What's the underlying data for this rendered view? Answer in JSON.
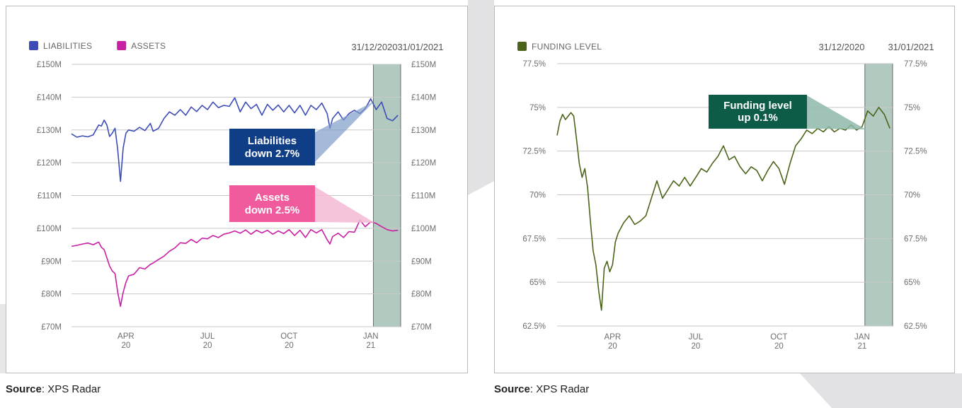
{
  "colors": {
    "liabilities": "#3d4db7",
    "assets": "#c81fa4",
    "funding": "#4b6419",
    "shade": "#a9c4b8",
    "liab_box": "#0f3d86",
    "assets_box": "#ef5b9c",
    "funding_box": "#0d5c48",
    "grid": "#c8c8c8",
    "axis_text": "#6e6e6e"
  },
  "left_panel": {
    "source_label": "Source",
    "source_text": ": XPS Radar",
    "dates": [
      "31/12/2020",
      "31/01/2021"
    ],
    "callouts": [
      {
        "line1": "Liabilities",
        "line2": "down 2.7%"
      },
      {
        "line1": "Assets",
        "line2": "down 2.5%"
      }
    ]
  },
  "right_panel": {
    "source_label": "Source",
    "source_text": ": XPS Radar",
    "dates": [
      "31/12/2020",
      "31/01/2021"
    ],
    "callouts": [
      {
        "line1": "Funding level",
        "line2": "up 0.1%"
      }
    ]
  },
  "chart_data": [
    {
      "type": "line",
      "legend": [
        "LIABILITIES",
        "ASSETS"
      ],
      "legend_position": "top-left",
      "grid": true,
      "ylim": [
        70,
        150
      ],
      "y_ticks": [
        "£150M",
        "£140M",
        "£130M",
        "£120M",
        "£110M",
        "£100M",
        "£90M",
        "£80M",
        "£70M"
      ],
      "y_tick_values": [
        150,
        140,
        130,
        120,
        110,
        100,
        90,
        80,
        70
      ],
      "xlim": [
        0,
        12.1
      ],
      "x_ticks": [
        {
          "x": 2,
          "label": [
            "APR",
            "20"
          ]
        },
        {
          "x": 5,
          "label": [
            "JUL",
            "20"
          ]
        },
        {
          "x": 8,
          "label": [
            "OCT",
            "20"
          ]
        },
        {
          "x": 11,
          "label": [
            "JAN",
            "21"
          ]
        }
      ],
      "shaded_region": [
        11.1,
        12.1
      ],
      "series": [
        {
          "name": "LIABILITIES",
          "x": [
            0,
            0.2,
            0.4,
            0.6,
            0.8,
            1.0,
            1.1,
            1.2,
            1.3,
            1.4,
            1.5,
            1.6,
            1.7,
            1.8,
            1.9,
            2.0,
            2.1,
            2.3,
            2.5,
            2.7,
            2.9,
            3.0,
            3.2,
            3.4,
            3.6,
            3.8,
            4.0,
            4.2,
            4.4,
            4.6,
            4.8,
            5.0,
            5.2,
            5.4,
            5.6,
            5.8,
            6.0,
            6.2,
            6.4,
            6.6,
            6.8,
            7.0,
            7.2,
            7.4,
            7.6,
            7.8,
            8.0,
            8.2,
            8.4,
            8.6,
            8.8,
            9.0,
            9.2,
            9.4,
            9.5,
            9.6,
            9.8,
            10.0,
            10.2,
            10.4,
            10.6,
            10.8,
            11.0,
            11.2,
            11.4,
            11.6,
            11.8,
            12.0
          ],
          "values": [
            128.8,
            127.8,
            128.2,
            127.9,
            128.5,
            131.5,
            131.2,
            133,
            131.5,
            128,
            129,
            130.5,
            124,
            114.3,
            124.5,
            129,
            130,
            129.6,
            130.8,
            129.8,
            132,
            129.6,
            130.5,
            133.5,
            135.5,
            134.5,
            136.2,
            134.5,
            137,
            135.6,
            137.5,
            136.2,
            138.5,
            136.8,
            137.5,
            137.2,
            139.8,
            135.5,
            138.5,
            136.5,
            137.8,
            134.5,
            137.8,
            136,
            137.6,
            135.5,
            137.5,
            135.2,
            137.5,
            134.5,
            137.5,
            136.2,
            138.2,
            135,
            130.5,
            133.5,
            135.5,
            133,
            135,
            136,
            135,
            136.5,
            139.5,
            136.2,
            138.5,
            133.5,
            132.8,
            134.5
          ]
        },
        {
          "name": "ASSETS",
          "x": [
            0,
            0.2,
            0.4,
            0.6,
            0.8,
            1.0,
            1.1,
            1.2,
            1.3,
            1.4,
            1.5,
            1.6,
            1.7,
            1.8,
            1.9,
            2.0,
            2.1,
            2.3,
            2.5,
            2.7,
            2.9,
            3.0,
            3.2,
            3.4,
            3.6,
            3.8,
            4.0,
            4.2,
            4.4,
            4.6,
            4.8,
            5.0,
            5.2,
            5.4,
            5.6,
            5.8,
            6.0,
            6.2,
            6.4,
            6.6,
            6.8,
            7.0,
            7.2,
            7.4,
            7.6,
            7.8,
            8.0,
            8.2,
            8.4,
            8.6,
            8.8,
            9.0,
            9.2,
            9.4,
            9.5,
            9.6,
            9.8,
            10.0,
            10.2,
            10.4,
            10.6,
            10.8,
            11.0,
            11.2,
            11.4,
            11.6,
            11.8,
            12.0
          ],
          "values": [
            94.5,
            94.8,
            95.2,
            95.5,
            95,
            95.8,
            94.2,
            93.5,
            91,
            88.5,
            87,
            86.2,
            80.5,
            76.2,
            80.5,
            83.5,
            85.5,
            86,
            88,
            87.6,
            89,
            89.4,
            90.5,
            91.5,
            93,
            94,
            95.6,
            95.4,
            96.6,
            95.6,
            97,
            96.8,
            97.8,
            97.2,
            98.2,
            98.6,
            99.2,
            98.5,
            99.5,
            98.2,
            99.4,
            98.6,
            99.4,
            98.2,
            99.2,
            98.4,
            99.6,
            97.8,
            99.4,
            97.2,
            99.6,
            98.6,
            99.6,
            96.5,
            95.2,
            97.5,
            98.5,
            97.2,
            99,
            98.8,
            102.5,
            100.5,
            102,
            101.5,
            100.5,
            99.6,
            99.2,
            99.4
          ]
        }
      ]
    },
    {
      "type": "line",
      "legend": [
        "FUNDING LEVEL"
      ],
      "legend_position": "top-left",
      "grid": true,
      "ylim": [
        62.5,
        77.5
      ],
      "y_ticks": [
        "77.5%",
        "75%",
        "72.5%",
        "70%",
        "67.5%",
        "65%",
        "62.5%"
      ],
      "y_tick_values": [
        77.5,
        75,
        72.5,
        70,
        67.5,
        65,
        62.5
      ],
      "xlim": [
        0,
        12.1
      ],
      "x_ticks": [
        {
          "x": 2,
          "label": [
            "APR",
            "20"
          ]
        },
        {
          "x": 5,
          "label": [
            "JUL",
            "20"
          ]
        },
        {
          "x": 8,
          "label": [
            "OCT",
            "20"
          ]
        },
        {
          "x": 11,
          "label": [
            "JAN",
            "21"
          ]
        }
      ],
      "shaded_region": [
        11.1,
        12.1
      ],
      "series": [
        {
          "name": "FUNDING LEVEL",
          "x": [
            0,
            0.1,
            0.2,
            0.3,
            0.5,
            0.6,
            0.7,
            0.8,
            0.9,
            1.0,
            1.1,
            1.2,
            1.3,
            1.4,
            1.5,
            1.6,
            1.7,
            1.8,
            1.9,
            2.0,
            2.1,
            2.2,
            2.4,
            2.6,
            2.8,
            3.0,
            3.2,
            3.4,
            3.6,
            3.8,
            4.0,
            4.2,
            4.4,
            4.6,
            4.8,
            5.0,
            5.2,
            5.4,
            5.6,
            5.8,
            6.0,
            6.2,
            6.4,
            6.6,
            6.8,
            7.0,
            7.2,
            7.4,
            7.6,
            7.8,
            8.0,
            8.2,
            8.4,
            8.6,
            8.8,
            9.0,
            9.2,
            9.4,
            9.6,
            9.8,
            10.0,
            10.2,
            10.4,
            10.6,
            10.8,
            11.0,
            11.2,
            11.4,
            11.6,
            11.8,
            12.0
          ],
          "values": [
            73.4,
            74.2,
            74.6,
            74.3,
            74.7,
            74.5,
            73.2,
            71.8,
            71,
            71.5,
            70.4,
            68.5,
            66.8,
            66,
            64.5,
            63.4,
            65.8,
            66.2,
            65.6,
            66,
            67.3,
            67.8,
            68.4,
            68.8,
            68.3,
            68.5,
            68.8,
            69.8,
            70.8,
            69.8,
            70.3,
            70.8,
            70.5,
            71,
            70.5,
            71,
            71.5,
            71.3,
            71.8,
            72.2,
            72.8,
            72,
            72.2,
            71.6,
            71.2,
            71.6,
            71.4,
            70.8,
            71.4,
            71.9,
            71.5,
            70.6,
            71.8,
            72.8,
            73.2,
            73.7,
            73.5,
            73.8,
            73.6,
            73.9,
            73.6,
            73.8,
            73.7,
            74,
            73.7,
            73.9,
            74.8,
            74.5,
            75,
            74.6,
            73.8
          ]
        }
      ]
    }
  ]
}
